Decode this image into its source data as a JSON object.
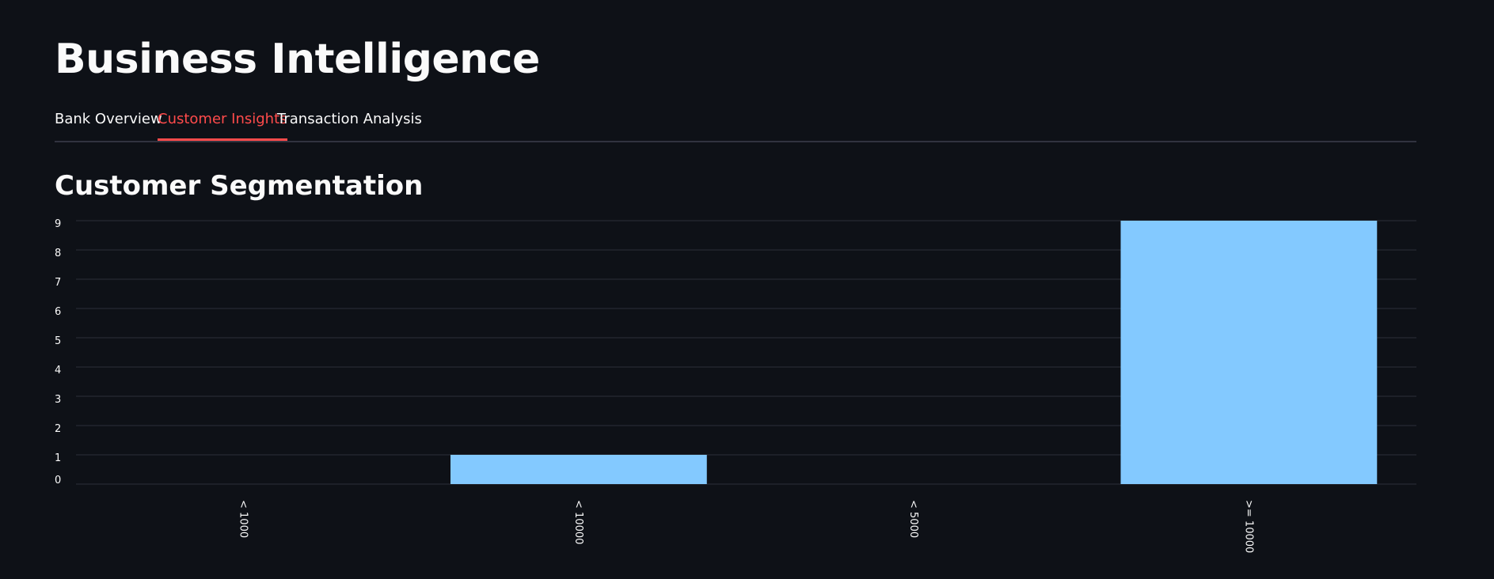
{
  "app": {
    "title": "Business Intelligence"
  },
  "tabs": [
    {
      "label": "Bank Overview",
      "active": false
    },
    {
      "label": "Customer Insights",
      "active": true
    },
    {
      "label": "Transaction Analysis",
      "active": false
    }
  ],
  "section": {
    "title": "Customer Segmentation"
  },
  "colors": {
    "background": "#0e1117",
    "accent": "#ff4b4b",
    "bar": "#83c9ff",
    "grid": "#2c303a",
    "text": "#fafafa"
  },
  "chart_data": {
    "type": "bar",
    "categories": [
      "< 1000",
      "< 10000",
      "< 5000",
      ">= 10000"
    ],
    "values": [
      0,
      1,
      0,
      9
    ],
    "yticks": [
      0,
      1,
      2,
      3,
      4,
      5,
      6,
      7,
      8,
      9
    ],
    "ylim": [
      0,
      9
    ],
    "grid": true,
    "xlabel": "",
    "ylabel": ""
  }
}
